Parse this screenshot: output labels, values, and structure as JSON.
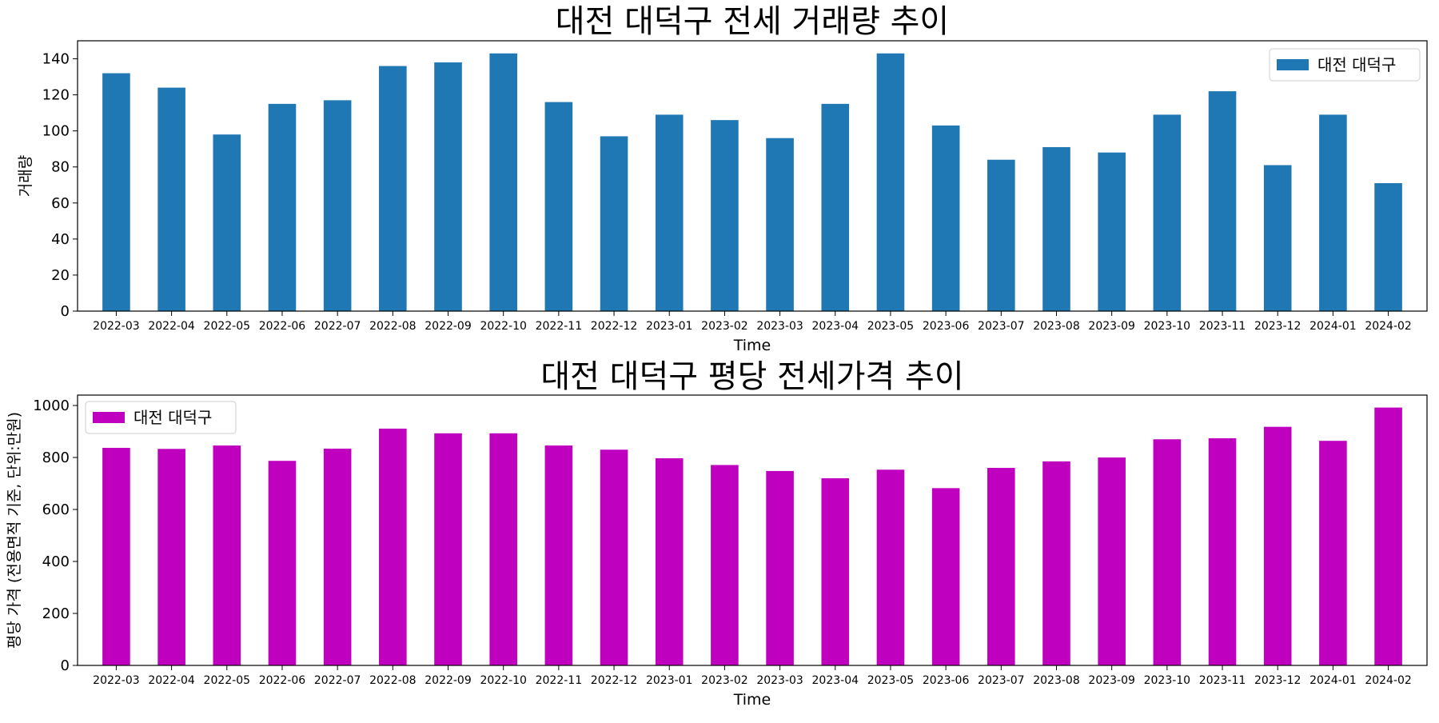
{
  "chart_data": [
    {
      "type": "bar",
      "title": "대전 대덕구 전세 거래량 추이",
      "xlabel": "Time",
      "ylabel": "거래량",
      "categories": [
        "2022-03",
        "2022-04",
        "2022-05",
        "2022-06",
        "2022-07",
        "2022-08",
        "2022-09",
        "2022-10",
        "2022-11",
        "2022-12",
        "2023-01",
        "2023-02",
        "2023-03",
        "2023-04",
        "2023-05",
        "2023-06",
        "2023-07",
        "2023-08",
        "2023-09",
        "2023-10",
        "2023-11",
        "2023-12",
        "2024-01",
        "2024-02"
      ],
      "series": [
        {
          "name": "대전 대덕구",
          "color": "#1f77b4",
          "values": [
            132,
            124,
            98,
            115,
            117,
            136,
            138,
            143,
            116,
            97,
            109,
            106,
            96,
            115,
            143,
            103,
            84,
            91,
            88,
            109,
            122,
            81,
            109,
            71
          ]
        }
      ],
      "ylim": [
        0,
        150
      ],
      "yticks": [
        0,
        20,
        40,
        60,
        80,
        100,
        120,
        140
      ],
      "legend": "top-right",
      "grid": false
    },
    {
      "type": "bar",
      "title": "대전 대덕구 평당 전세가격 추이",
      "xlabel": "Time",
      "ylabel": "평당 가격 (전용면적 기준, 단위:만원)",
      "categories": [
        "2022-03",
        "2022-04",
        "2022-05",
        "2022-06",
        "2022-07",
        "2022-08",
        "2022-09",
        "2022-10",
        "2022-11",
        "2022-12",
        "2023-01",
        "2023-02",
        "2023-03",
        "2023-04",
        "2023-05",
        "2023-06",
        "2023-07",
        "2023-08",
        "2023-09",
        "2023-10",
        "2023-11",
        "2023-12",
        "2024-01",
        "2024-02"
      ],
      "series": [
        {
          "name": "대전 대덕구",
          "color": "#bf00bf",
          "values": [
            837,
            833,
            846,
            787,
            834,
            911,
            893,
            893,
            846,
            830,
            797,
            771,
            748,
            720,
            753,
            682,
            760,
            785,
            800,
            870,
            874,
            918,
            864,
            992
          ]
        }
      ],
      "ylim": [
        0,
        1040
      ],
      "yticks": [
        0,
        200,
        400,
        600,
        800,
        1000
      ],
      "legend": "top-left",
      "grid": false
    }
  ]
}
